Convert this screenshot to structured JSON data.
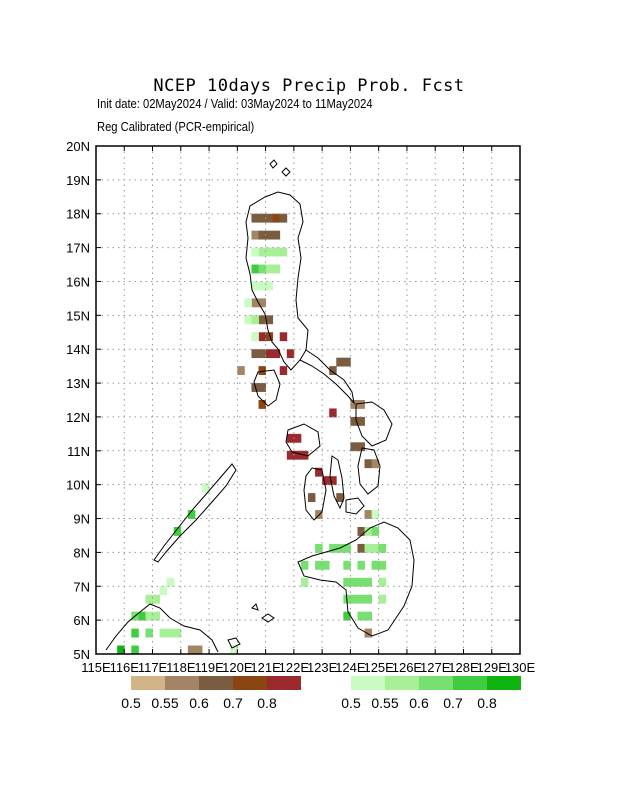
{
  "header": {
    "title": "NCEP 10days Precip Prob. Fcst",
    "dates": "Init date: 02May2024 / Valid: 03May2024 to 11May2024",
    "method": "Reg Calibrated (PCR-empirical)"
  },
  "axes": {
    "x_labels": [
      "115E",
      "116E",
      "117E",
      "118E",
      "119E",
      "120E",
      "121E",
      "122E",
      "123E",
      "124E",
      "125E",
      "126E",
      "127E",
      "128E",
      "129E",
      "130E"
    ],
    "y_labels": [
      "5N",
      "6N",
      "7N",
      "8N",
      "9N",
      "10N",
      "11N",
      "12N",
      "13N",
      "14N",
      "15N",
      "16N",
      "17N",
      "18N",
      "19N",
      "20N"
    ],
    "lon_range": [
      115,
      130
    ],
    "lat_range": [
      5,
      20
    ]
  },
  "colors": {
    "dry": [
      "#d2b488",
      "#a48464",
      "#7a5c40",
      "#8b4513",
      "#9b2a2e"
    ],
    "wet": [
      "#c8fcc0",
      "#a8f098",
      "#78e070",
      "#40cc40",
      "#10b410"
    ]
  },
  "legend": {
    "dry_labels": [
      "0.5",
      "0.55",
      "0.6",
      "0.7",
      "0.8"
    ],
    "wet_labels": [
      "0.5",
      "0.55",
      "0.6",
      "0.7",
      "0.8"
    ]
  },
  "cells": [
    [
      "d2",
      120.5,
      17.75
    ],
    [
      "d2",
      120.75,
      17.75
    ],
    [
      "d2",
      121.0,
      17.75
    ],
    [
      "d3",
      121.25,
      17.75
    ],
    [
      "d2",
      121.5,
      17.75
    ],
    [
      "d1",
      120.5,
      17.25
    ],
    [
      "d2",
      120.75,
      17.25
    ],
    [
      "d2",
      121.0,
      17.25
    ],
    [
      "d2",
      121.25,
      17.25
    ],
    [
      "w1",
      120.75,
      16.75
    ],
    [
      "w1",
      121.0,
      16.75
    ],
    [
      "w1",
      121.25,
      16.75
    ],
    [
      "w1",
      121.5,
      16.75
    ],
    [
      "w0",
      120.5,
      16.75
    ],
    [
      "w3",
      120.5,
      16.25
    ],
    [
      "w2",
      120.75,
      16.25
    ],
    [
      "w1",
      121.0,
      16.25
    ],
    [
      "w1",
      121.25,
      16.25
    ],
    [
      "w0",
      120.5,
      15.75
    ],
    [
      "w0",
      120.75,
      15.75
    ],
    [
      "w0",
      121.0,
      15.75
    ],
    [
      "d1",
      120.5,
      15.25
    ],
    [
      "d1",
      120.75,
      15.25
    ],
    [
      "w0",
      120.25,
      15.25
    ],
    [
      "d2",
      120.75,
      14.75
    ],
    [
      "d2",
      121.0,
      14.75
    ],
    [
      "w0",
      120.25,
      14.75
    ],
    [
      "w1",
      120.5,
      14.75
    ],
    [
      "d4",
      120.75,
      14.25
    ],
    [
      "d3",
      121.0,
      14.25
    ],
    [
      "d4",
      121.5,
      14.25
    ],
    [
      "w0",
      120.5,
      14.25
    ],
    [
      "d4",
      121.0,
      13.75
    ],
    [
      "d2",
      120.75,
      13.75
    ],
    [
      "d4",
      121.25,
      13.75
    ],
    [
      "d4",
      121.75,
      13.75
    ],
    [
      "d2",
      120.5,
      13.75
    ],
    [
      "d1",
      120.0,
      13.25
    ],
    [
      "d3",
      120.75,
      13.25
    ],
    [
      "d4",
      121.5,
      13.25
    ],
    [
      "d2",
      120.5,
      12.75
    ],
    [
      "d2",
      120.75,
      12.75
    ],
    [
      "d3",
      120.75,
      12.25
    ],
    [
      "d2",
      123.5,
      13.5
    ],
    [
      "d2",
      123.75,
      13.5
    ],
    [
      "d2",
      123.25,
      13.25
    ],
    [
      "d4",
      123.25,
      12.0
    ],
    [
      "d1",
      124.0,
      12.25
    ],
    [
      "d1",
      124.25,
      12.25
    ],
    [
      "d2",
      124.0,
      11.75
    ],
    [
      "d2",
      124.25,
      11.75
    ],
    [
      "d4",
      121.75,
      11.25
    ],
    [
      "d4",
      122.0,
      11.25
    ],
    [
      "d4",
      121.75,
      10.75
    ],
    [
      "d4",
      122.0,
      10.75
    ],
    [
      "d4",
      122.25,
      10.75
    ],
    [
      "d2",
      124.0,
      11.0
    ],
    [
      "d2",
      124.25,
      11.0
    ],
    [
      "d2",
      124.5,
      10.5
    ],
    [
      "d1",
      124.75,
      10.5
    ],
    [
      "d4",
      122.75,
      10.25
    ],
    [
      "d4",
      123.0,
      10.0
    ],
    [
      "d4",
      123.25,
      10.0
    ],
    [
      "d2",
      122.5,
      9.5
    ],
    [
      "d2",
      123.5,
      9.5
    ],
    [
      "d1",
      122.75,
      9.0
    ],
    [
      "d1",
      124.5,
      9.0
    ],
    [
      "w0",
      124.75,
      9.0
    ],
    [
      "d2",
      124.25,
      8.5
    ],
    [
      "w1",
      124.5,
      8.5
    ],
    [
      "w2",
      124.75,
      8.5
    ],
    [
      "w2",
      122.75,
      8.0
    ],
    [
      "w2",
      123.25,
      8.0
    ],
    [
      "w2",
      123.5,
      8.0
    ],
    [
      "w2",
      123.75,
      8.0
    ],
    [
      "d2",
      124.25,
      8.0
    ],
    [
      "w1",
      124.5,
      8.0
    ],
    [
      "w1",
      124.75,
      8.0
    ],
    [
      "w2",
      125.0,
      8.0
    ],
    [
      "w2",
      122.25,
      7.5
    ],
    [
      "w2",
      122.75,
      7.5
    ],
    [
      "w2",
      123.0,
      7.5
    ],
    [
      "w2",
      123.75,
      7.5
    ],
    [
      "w2",
      124.25,
      7.5
    ],
    [
      "w2",
      124.75,
      7.5
    ],
    [
      "w2",
      125.0,
      7.5
    ],
    [
      "w2",
      123.75,
      7.0
    ],
    [
      "w2",
      124.0,
      7.0
    ],
    [
      "w2",
      124.25,
      7.0
    ],
    [
      "w2",
      124.5,
      7.0
    ],
    [
      "w1",
      122.25,
      7.0
    ],
    [
      "w1",
      125.0,
      7.0
    ],
    [
      "w2",
      123.75,
      6.5
    ],
    [
      "w2",
      124.0,
      6.5
    ],
    [
      "w2",
      124.25,
      6.5
    ],
    [
      "w2",
      124.5,
      6.5
    ],
    [
      "w1",
      125.0,
      6.5
    ],
    [
      "w3",
      123.75,
      6.0
    ],
    [
      "w2",
      124.25,
      6.0
    ],
    [
      "w2",
      124.5,
      6.0
    ],
    [
      "d1",
      124.5,
      5.5
    ],
    [
      "w3",
      118.25,
      9.0
    ],
    [
      "w3",
      117.75,
      8.5
    ],
    [
      "w0",
      117.5,
      7.0
    ],
    [
      "w0",
      117.25,
      6.75
    ],
    [
      "w1",
      116.75,
      6.5
    ],
    [
      "w1",
      117.0,
      6.5
    ],
    [
      "w2",
      116.25,
      6.0
    ],
    [
      "w3",
      116.5,
      6.0
    ],
    [
      "w1",
      116.75,
      6.0
    ],
    [
      "w1",
      117.0,
      6.0
    ],
    [
      "w3",
      116.25,
      5.5
    ],
    [
      "w2",
      116.75,
      5.5
    ],
    [
      "w1",
      117.25,
      5.5
    ],
    [
      "w1",
      117.5,
      5.5
    ],
    [
      "w1",
      117.75,
      5.5
    ],
    [
      "w4",
      115.75,
      5.0
    ],
    [
      "w3",
      116.25,
      5.0
    ],
    [
      "d1",
      118.25,
      5.0
    ],
    [
      "d1",
      118.5,
      5.0
    ],
    [
      "w0",
      119.75,
      5.0
    ],
    [
      "w0",
      118.75,
      9.8
    ]
  ]
}
